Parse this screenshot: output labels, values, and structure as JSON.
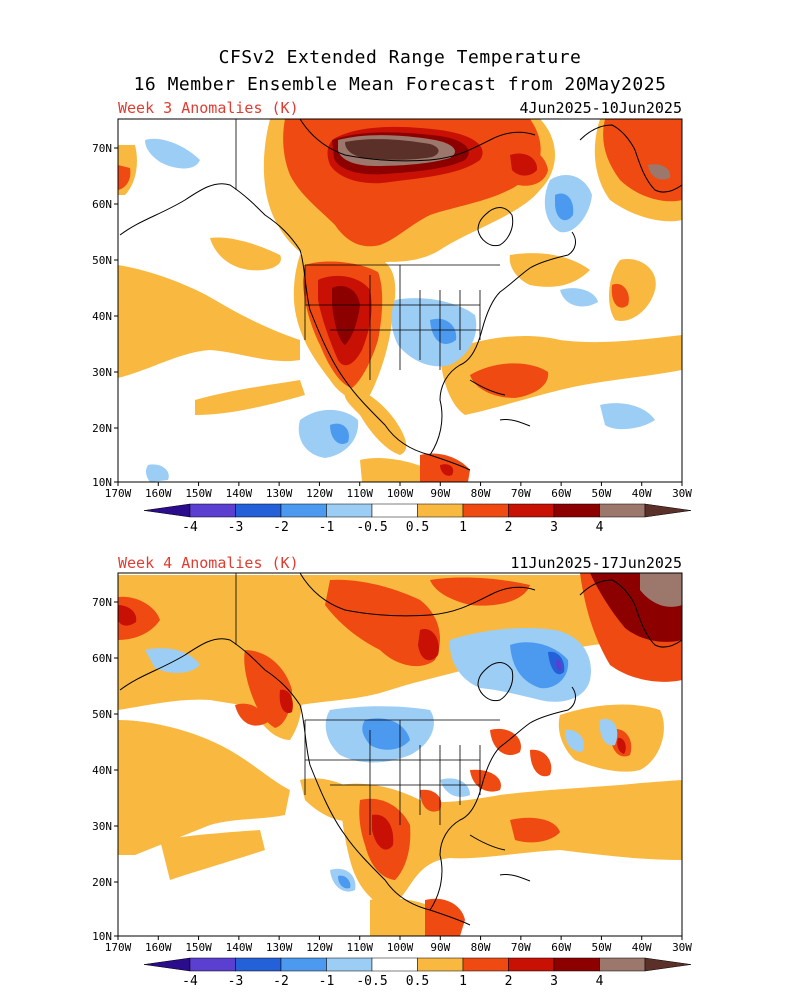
{
  "title_line1": "CFSv2 Extended Range Temperature",
  "title_line2": "16 Member Ensemble Mean Forecast from 20May2025",
  "colors": {
    "label_red": "#e03c31",
    "scale": [
      "#2a0c8c",
      "#5a3fd0",
      "#2460d8",
      "#4c9af0",
      "#9ccdf5",
      "#ffffff",
      "#f9b940",
      "#ef4a12",
      "#c81005",
      "#8c0000",
      "#9c776c",
      "#5a3028"
    ]
  },
  "panels": [
    {
      "label": "Week 3 Anomalies (K)",
      "dates": "4Jun2025-10Jun2025"
    },
    {
      "label": "Week 4 Anomalies (K)",
      "dates": "11Jun2025-17Jun2025"
    }
  ],
  "map": {
    "lat_labels": [
      "70N",
      "60N",
      "50N",
      "40N",
      "30N",
      "20N",
      "10N"
    ],
    "lon_labels": [
      "170W",
      "160W",
      "150W",
      "140W",
      "130W",
      "120W",
      "110W",
      "100W",
      "90W",
      "80W",
      "70W",
      "60W",
      "50W",
      "40W",
      "30W"
    ]
  },
  "colorbar": {
    "labels": [
      "-4",
      "-3",
      "-2",
      "-1",
      "-0.5",
      "0.5",
      "1",
      "2",
      "3",
      "4"
    ]
  }
}
